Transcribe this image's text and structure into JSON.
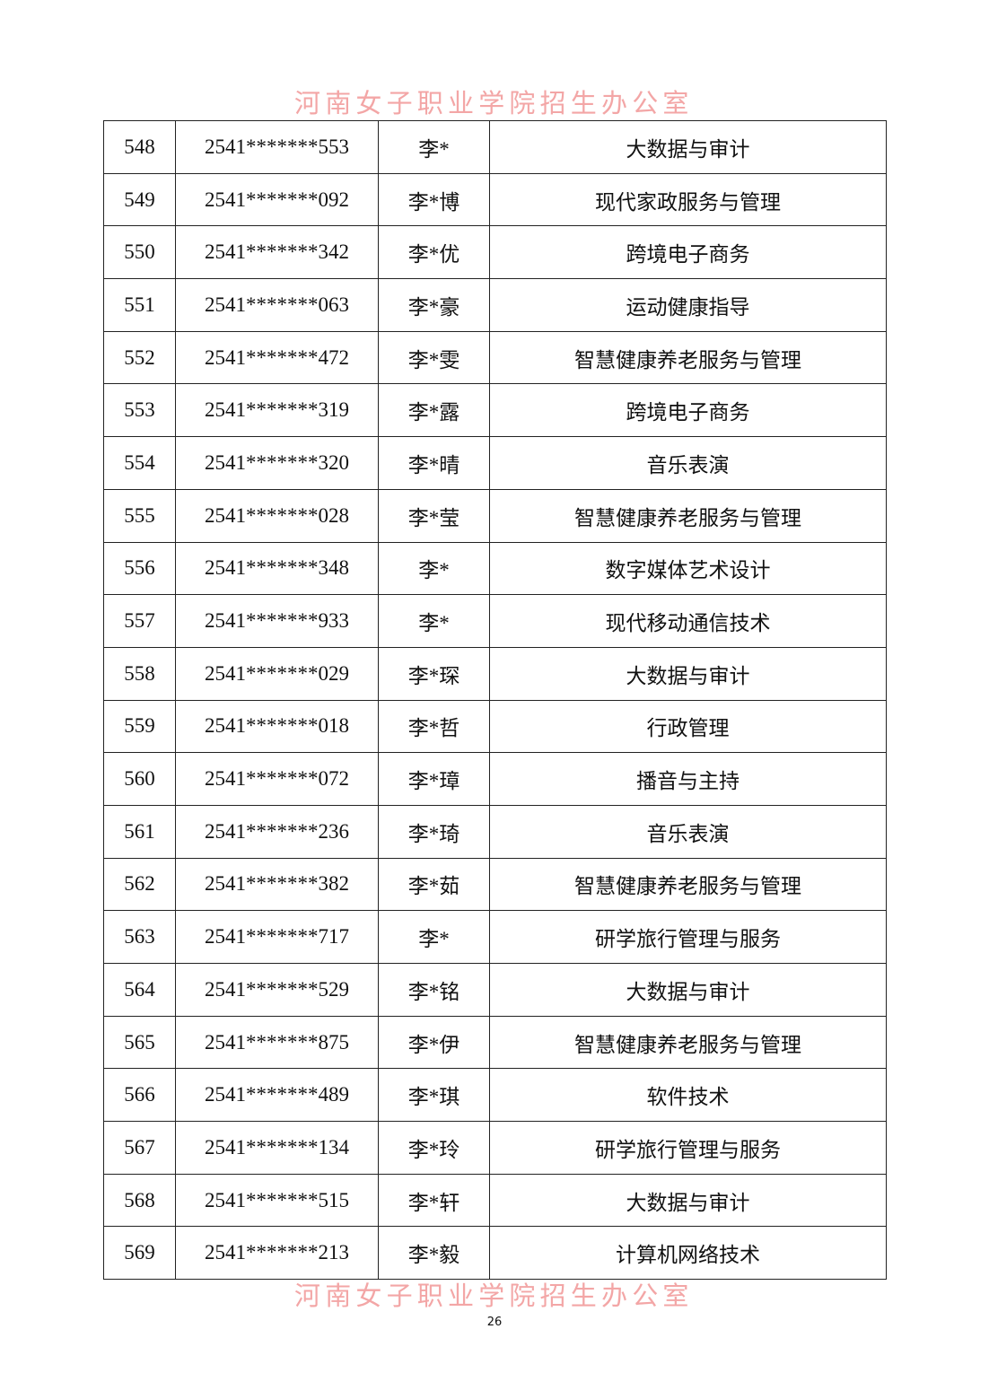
{
  "watermark": "河南女子职业学院招生办公室",
  "page_number": "26",
  "rows": [
    [
      "548",
      "2541*******553",
      "李*",
      "大数据与审计"
    ],
    [
      "549",
      "2541*******092",
      "李*博",
      "现代家政服务与管理"
    ],
    [
      "550",
      "2541*******342",
      "李*优",
      "跨境电子商务"
    ],
    [
      "551",
      "2541*******063",
      "李*豪",
      "运动健康指导"
    ],
    [
      "552",
      "2541*******472",
      "李*雯",
      "智慧健康养老服务与管理"
    ],
    [
      "553",
      "2541*******319",
      "李*露",
      "跨境电子商务"
    ],
    [
      "554",
      "2541*******320",
      "李*晴",
      "音乐表演"
    ],
    [
      "555",
      "2541*******028",
      "李*莹",
      "智慧健康养老服务与管理"
    ],
    [
      "556",
      "2541*******348",
      "李*",
      "数字媒体艺术设计"
    ],
    [
      "557",
      "2541*******933",
      "李*",
      "现代移动通信技术"
    ],
    [
      "558",
      "2541*******029",
      "李*琛",
      "大数据与审计"
    ],
    [
      "559",
      "2541*******018",
      "李*哲",
      "行政管理"
    ],
    [
      "560",
      "2541*******072",
      "李*璋",
      "播音与主持"
    ],
    [
      "561",
      "2541*******236",
      "李*琦",
      "音乐表演"
    ],
    [
      "562",
      "2541*******382",
      "李*茹",
      "智慧健康养老服务与管理"
    ],
    [
      "563",
      "2541*******717",
      "李*",
      "研学旅行管理与服务"
    ],
    [
      "564",
      "2541*******529",
      "李*铭",
      "大数据与审计"
    ],
    [
      "565",
      "2541*******875",
      "李*伊",
      "智慧健康养老服务与管理"
    ],
    [
      "566",
      "2541*******489",
      "李*琪",
      "软件技术"
    ],
    [
      "567",
      "2541*******134",
      "李*玲",
      "研学旅行管理与服务"
    ],
    [
      "568",
      "2541*******515",
      "李*轩",
      "大数据与审计"
    ],
    [
      "569",
      "2541*******213",
      "李*毅",
      "计算机网络技术"
    ]
  ]
}
